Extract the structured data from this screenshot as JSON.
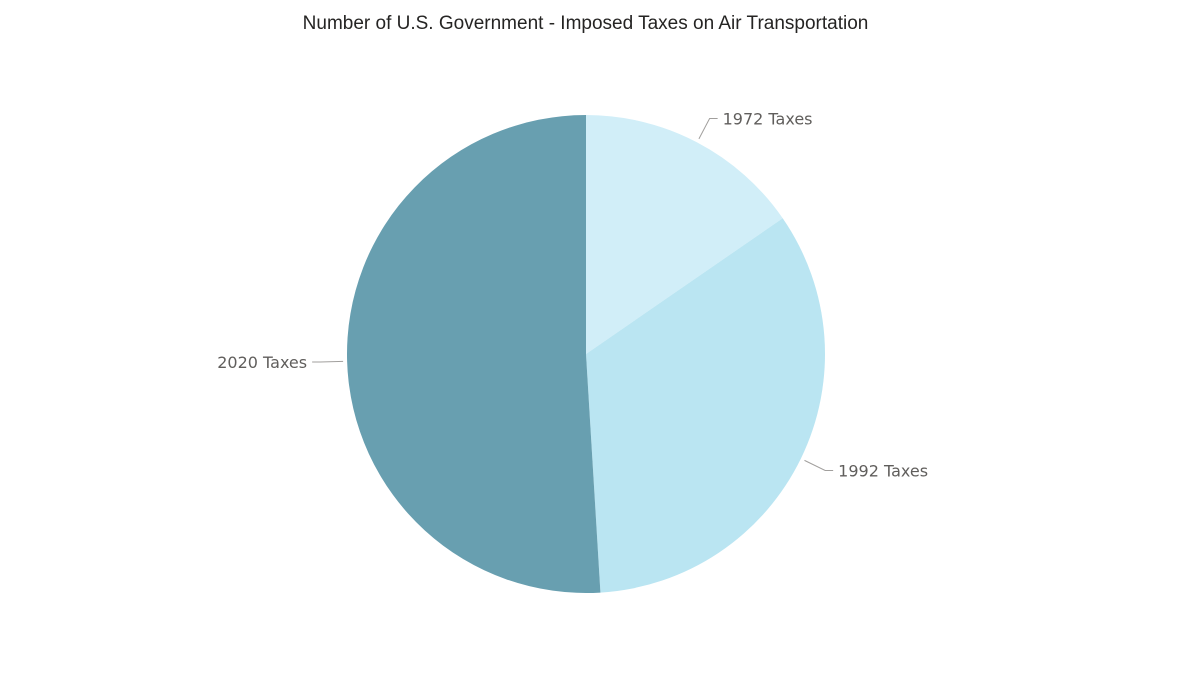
{
  "chart_data": {
    "type": "pie",
    "title": "Number of U.S. Government - Imposed Taxes on Air Transportation",
    "categories": [
      "1972 Taxes",
      "1992 Taxes",
      "2020 Taxes"
    ],
    "values": [
      16,
      35,
      53
    ],
    "colors": [
      "#d1eef8",
      "#bae5f2",
      "#689fb0"
    ],
    "start_angle_deg": 0,
    "direction": "clockwise",
    "legend": "none",
    "data_labels": "category-name-outside"
  }
}
